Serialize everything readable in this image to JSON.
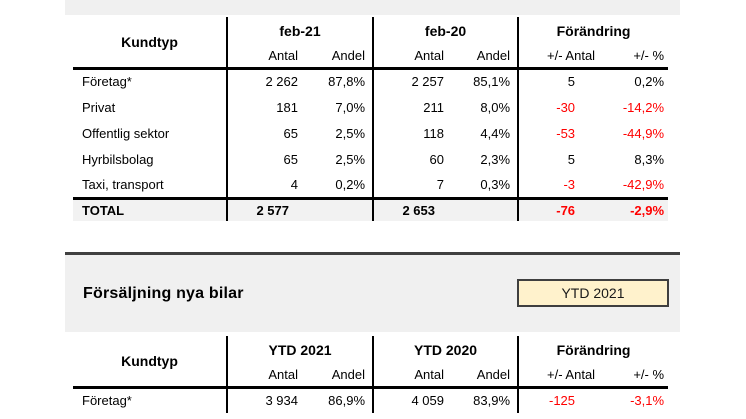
{
  "colors": {
    "negative_value": "#FF0000",
    "band_background": "#F0F0F0",
    "total_row_background": "#F2F2F2",
    "button_background": "#FFF2CC",
    "button_border": "#3F3F3F",
    "table_line": "#000000"
  },
  "table_feb": {
    "label_header": "Kundtyp",
    "groups": [
      "feb-21",
      "feb-20",
      "Förändring"
    ],
    "subheaders": [
      "Antal",
      "Andel",
      "Antal",
      "Andel",
      "+/- Antal",
      "+/- %"
    ],
    "rows": [
      {
        "label": "Företag*",
        "cells": [
          "2 262",
          "87,8%",
          "2 257",
          "85,1%",
          "5",
          "0,2%"
        ]
      },
      {
        "label": "Privat",
        "cells": [
          "181",
          "7,0%",
          "211",
          "8,0%",
          "-30",
          "-14,2%"
        ]
      },
      {
        "label": "Offentlig sektor",
        "cells": [
          "65",
          "2,5%",
          "118",
          "4,4%",
          "-53",
          "-44,9%"
        ]
      },
      {
        "label": "Hyrbilsbolag",
        "cells": [
          "65",
          "2,5%",
          "60",
          "2,3%",
          "5",
          "8,3%"
        ]
      },
      {
        "label": "Taxi, transport",
        "cells": [
          "4",
          "0,2%",
          "7",
          "0,3%",
          "-3",
          "-42,9%"
        ]
      }
    ],
    "total": {
      "label": "TOTAL",
      "cells": [
        "2 577",
        "",
        "2 653",
        "",
        "-76",
        "-2,9%"
      ]
    }
  },
  "section": {
    "title": "Försäljning nya bilar",
    "button": "YTD 2021"
  },
  "table_ytd": {
    "label_header": "Kundtyp",
    "groups": [
      "YTD 2021",
      "YTD 2020",
      "Förändring"
    ],
    "subheaders": [
      "Antal",
      "Andel",
      "Antal",
      "Andel",
      "+/- Antal",
      "+/- %"
    ],
    "rows": [
      {
        "label": "Företag*",
        "cells": [
          "3 934",
          "86,9%",
          "4 059",
          "83,9%",
          "-125",
          "-3,1%"
        ]
      }
    ]
  }
}
